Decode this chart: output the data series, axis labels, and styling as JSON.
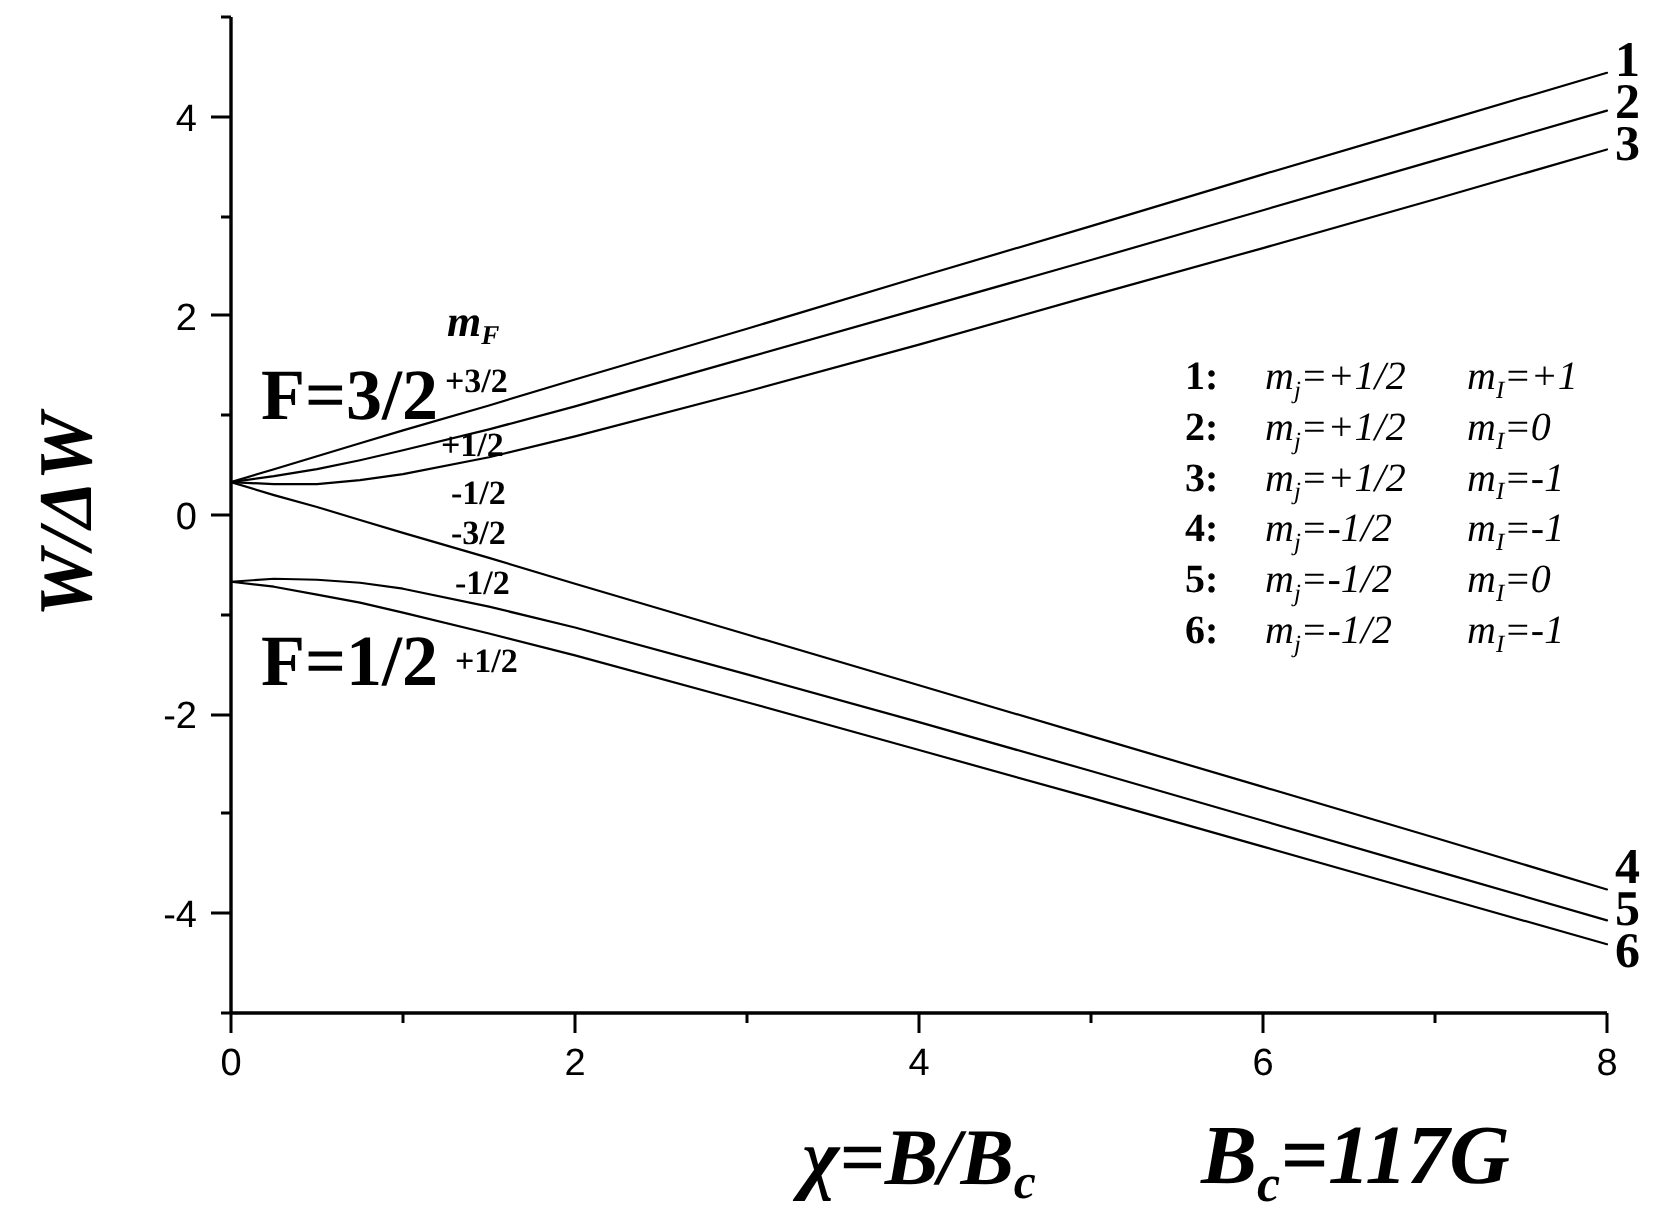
{
  "chart_data": {
    "type": "line",
    "xlabel": "χ=B/B$_{c}$",
    "ylabel": "W/ΔW",
    "xlim": [
      0,
      8
    ],
    "ylim": [
      -5,
      5
    ],
    "xticks": [
      0,
      {
        "value": 1,
        "label": null
      },
      2,
      {
        "value": 3,
        "label": null
      },
      4,
      {
        "value": 5,
        "label": null
      },
      6,
      {
        "value": 7,
        "label": null
      },
      8
    ],
    "yticks": [
      {
        "value": -5,
        "label": null
      },
      -4,
      {
        "value": -3,
        "label": null
      },
      -2,
      {
        "value": -1,
        "label": null
      },
      0,
      {
        "value": 1,
        "label": null
      },
      2,
      {
        "value": 3,
        "label": null
      },
      4,
      {
        "value": 5,
        "label": null
      }
    ],
    "x": [
      0,
      0.25,
      0.5,
      0.75,
      1,
      1.5,
      2,
      3,
      4,
      5,
      6,
      7,
      8
    ],
    "series": [
      {
        "name": "1",
        "color": "#000000",
        "values": [
          0.33,
          0.46,
          0.59,
          0.72,
          0.85,
          1.1,
          1.36,
          1.87,
          2.39,
          2.9,
          3.42,
          3.93,
          4.44
        ]
      },
      {
        "name": "2",
        "color": "#000000",
        "values": [
          0.33,
          0.39,
          0.46,
          0.55,
          0.65,
          0.86,
          1.09,
          1.58,
          2.07,
          2.56,
          3.06,
          3.56,
          4.06
        ]
      },
      {
        "name": "3",
        "color": "#000000",
        "values": [
          0.33,
          0.31,
          0.31,
          0.35,
          0.41,
          0.58,
          0.79,
          1.24,
          1.71,
          2.2,
          2.68,
          3.17,
          3.67
        ]
      },
      {
        "name": "4",
        "color": "#000000",
        "values": [
          0.33,
          0.2,
          0.08,
          -0.05,
          -0.18,
          -0.43,
          -0.69,
          -1.2,
          -1.71,
          -2.22,
          -2.73,
          -3.24,
          -3.76
        ]
      },
      {
        "name": "5",
        "color": "#000000",
        "values": [
          -0.67,
          -0.64,
          -0.65,
          -0.68,
          -0.74,
          -0.92,
          -1.13,
          -1.6,
          -2.08,
          -2.57,
          -3.07,
          -3.57,
          -4.07
        ]
      },
      {
        "name": "6",
        "color": "#000000",
        "values": [
          -0.67,
          -0.72,
          -0.8,
          -0.88,
          -0.98,
          -1.19,
          -1.41,
          -1.88,
          -2.36,
          -2.84,
          -3.33,
          -3.82,
          -4.31
        ]
      }
    ],
    "annotations": [
      "m$_{F}$",
      "F=3/2",
      "+3/2",
      "+1/2",
      "-1/2",
      "-3/2",
      "-1/2",
      "F=1/2",
      "+1/2",
      "1: m$_{j}$=+1/2   m$_{I}$=+1",
      "2: m$_{j}$=+1/2   m$_{I}$=0",
      "3: m$_{j}$=+1/2   m$_{I}$=-1",
      "4: m$_{j}$=-1/2   m$_{I}$=-1",
      "5: m$_{j}$=-1/2   m$_{I}$=0",
      "6: m$_{j}$=-1/2   m$_{I}$=-1",
      "B$_{c}$=117G"
    ]
  }
}
